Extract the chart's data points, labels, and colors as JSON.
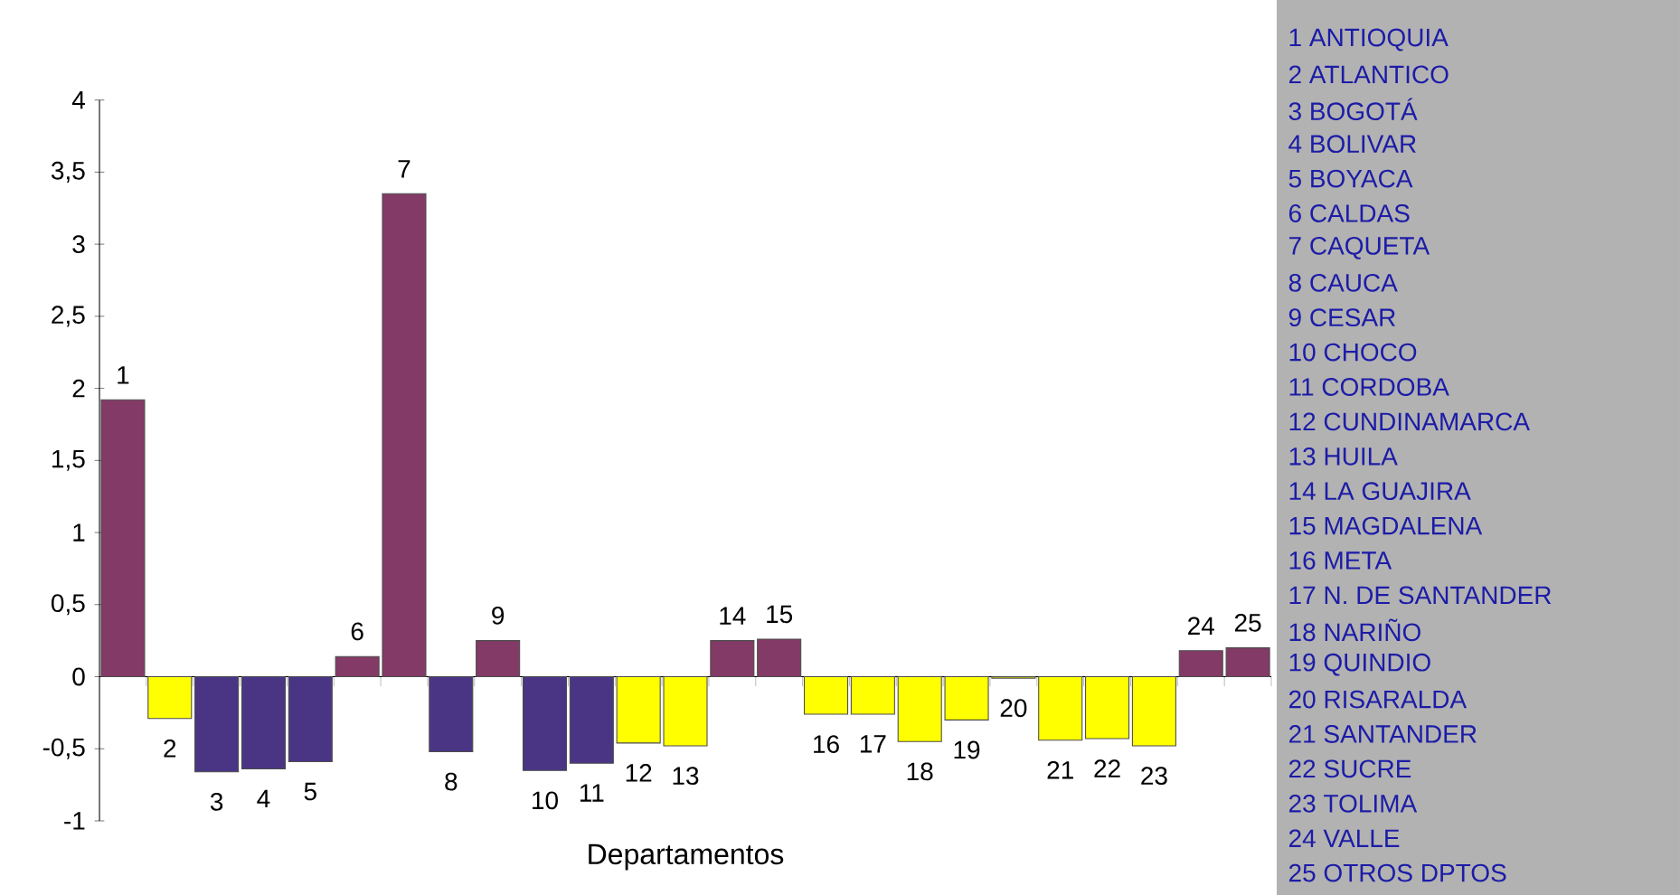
{
  "chart_data": {
    "type": "bar",
    "xlabel": "Departamentos",
    "categories": [
      "1",
      "2",
      "3",
      "4",
      "5",
      "6",
      "7",
      "8",
      "9",
      "10",
      "11",
      "12",
      "13",
      "14",
      "15",
      "16",
      "17",
      "18",
      "19",
      "20",
      "21",
      "22",
      "23",
      "24",
      "25"
    ],
    "values": [
      1.92,
      -0.29,
      -0.66,
      -0.64,
      -0.59,
      0.14,
      3.35,
      -0.52,
      0.25,
      -0.65,
      -0.6,
      -0.46,
      -0.48,
      0.25,
      0.26,
      -0.26,
      -0.26,
      -0.45,
      -0.3,
      -0.01,
      -0.44,
      -0.43,
      -0.48,
      0.18,
      0.2
    ],
    "colors": [
      "#833a66",
      "#ffff00",
      "#4a3585",
      "#4a3585",
      "#4a3585",
      "#833a66",
      "#833a66",
      "#4a3585",
      "#833a66",
      "#4a3585",
      "#4a3585",
      "#ffff00",
      "#ffff00",
      "#833a66",
      "#833a66",
      "#ffff00",
      "#ffff00",
      "#ffff00",
      "#ffff00",
      "#ffff00",
      "#ffff00",
      "#ffff00",
      "#ffff00",
      "#833a66",
      "#833a66"
    ],
    "ylim": [
      -1,
      4
    ],
    "yticks": [
      {
        "value": -1,
        "label": "-1"
      },
      {
        "value": -0.5,
        "label": "-0,5"
      },
      0,
      {
        "value": 0.5,
        "label": "0,5"
      },
      1,
      {
        "value": 1.5,
        "label": "1,5"
      },
      2,
      {
        "value": 2.5,
        "label": "2,5"
      },
      3,
      {
        "value": 3.5,
        "label": "3,5"
      },
      4
    ],
    "annotations": [
      "1   ANTIOQUIA",
      "2   ATLANTICO",
      "3   BOGOTÁ",
      "4   BOLIVAR",
      "5   BOYACA",
      "6   CALDAS",
      "7   CAQUETA",
      "8   CAUCA",
      "9   CESAR",
      "10 CHOCO",
      "11 CORDOBA",
      "12 CUNDINAMARCA",
      "13 HUILA",
      "14 LA GUAJIRA",
      "15 MAGDALENA",
      "16 META",
      "17 N. DE SANTANDER",
      "18 NARIÑO",
      "19 QUINDIO",
      "20 RISARALDA",
      "21 SANTANDER",
      "22 SUCRE",
      "23 TOLIMA",
      "24 VALLE",
      "25 OTROS DPTOS"
    ]
  }
}
